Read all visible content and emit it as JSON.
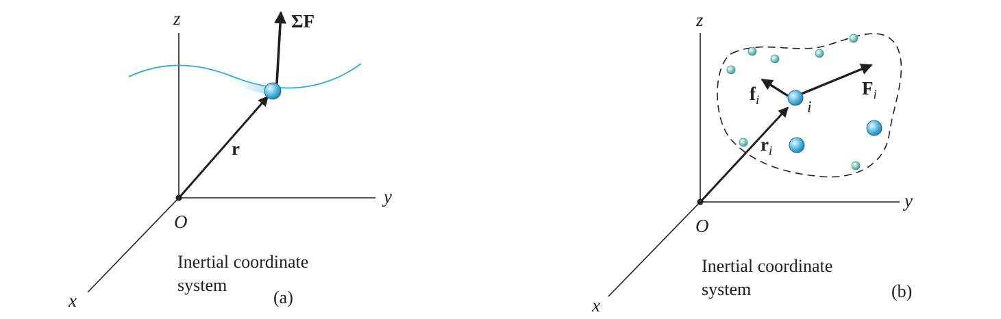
{
  "panel_a": {
    "axis_z": "z",
    "axis_y": "y",
    "axis_x": "x",
    "origin": "O",
    "force_label": "ΣF",
    "position_label": "r",
    "caption_line1": "Inertial coordinate",
    "caption_line2": "system",
    "tag": "(a)"
  },
  "panel_b": {
    "axis_z": "z",
    "axis_y": "y",
    "axis_x": "x",
    "origin": "O",
    "internal_force_label": "f",
    "external_force_label": "F",
    "position_label": "r",
    "subscript": "i",
    "particle_label": "i",
    "caption_line1": "Inertial coordinate",
    "caption_line2": "system",
    "tag": "(b)"
  },
  "colors": {
    "ink": "#231f20",
    "path": "#29a9e1",
    "particle": "#6ec6ea",
    "small_particle": "#8fd0cf"
  }
}
